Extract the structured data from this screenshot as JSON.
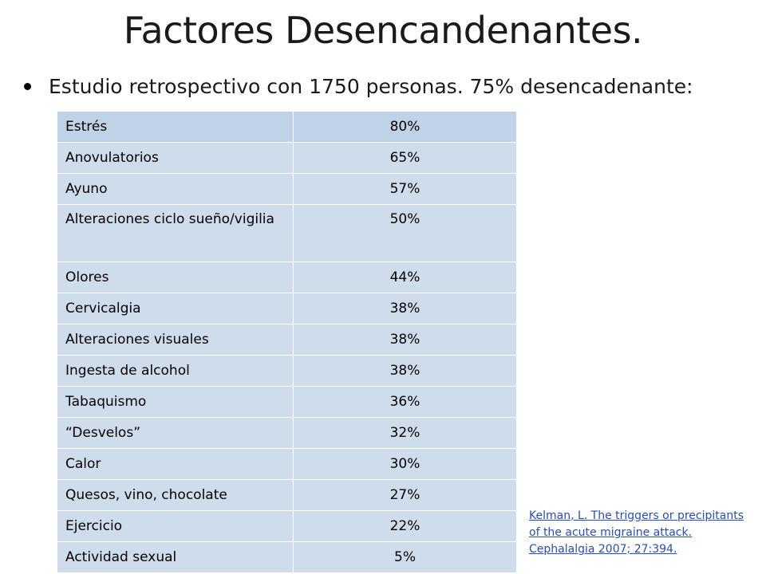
{
  "title": "Factores Desencandenantes.",
  "bullet": "Estudio retrospectivo con 1750 personas. 75% desencadenante:",
  "table": {
    "rows": [
      {
        "factor": "Estrés",
        "percent": "80%"
      },
      {
        "factor": "Anovulatorios",
        "percent": "65%"
      },
      {
        "factor": "Ayuno",
        "percent": "57%"
      },
      {
        "factor": "Alteraciones ciclo sueño/vigilia",
        "percent": "50%"
      },
      {
        "factor": "Olores",
        "percent": "44%"
      },
      {
        "factor": "Cervicalgia",
        "percent": "38%"
      },
      {
        "factor": "Alteraciones visuales",
        "percent": "38%"
      },
      {
        "factor": "Ingesta de alcohol",
        "percent": "38%"
      },
      {
        "factor": "Tabaquismo",
        "percent": "36%"
      },
      {
        "factor": "“Desvelos”",
        "percent": "32%"
      },
      {
        "factor": "Calor",
        "percent": "30%"
      },
      {
        "factor": "Quesos, vino, chocolate",
        "percent": "27%"
      },
      {
        "factor": "Ejercicio",
        "percent": "22%"
      },
      {
        "factor": "Actividad sexual",
        "percent": "5%"
      }
    ]
  },
  "reference": {
    "line1": "Kelman, L. The triggers or precipitants",
    "line2": "of the acute migraine attack.",
    "line3": " Cephalalgia 2007; 27:394."
  }
}
